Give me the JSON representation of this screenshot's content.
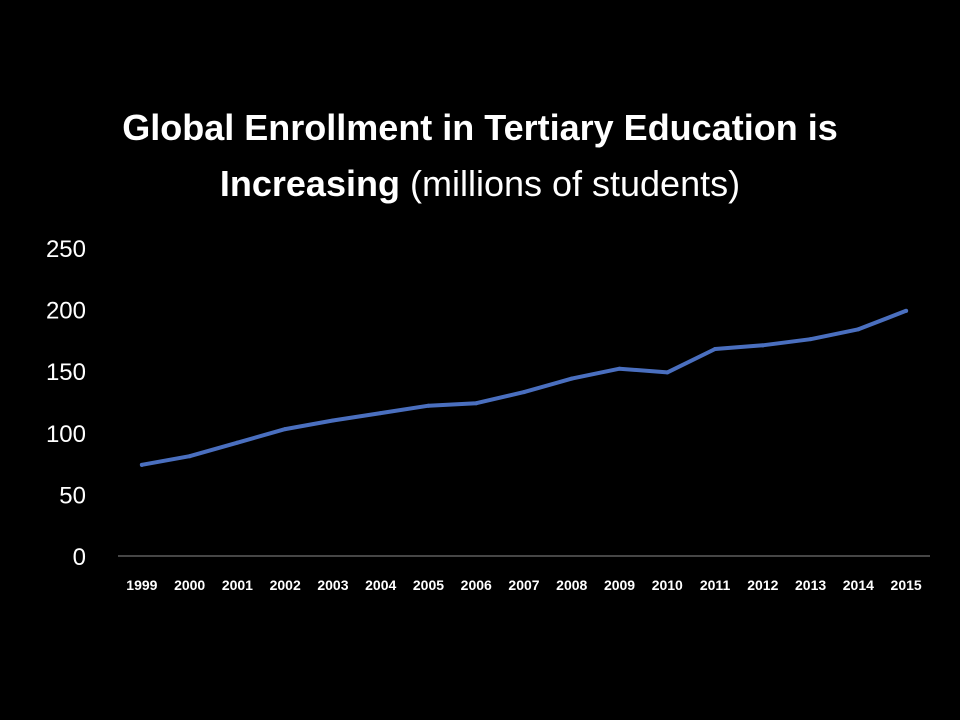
{
  "slide": {
    "title_line1": "Global Enrollment in Tertiary Education is",
    "title_line2_bold": "Increasing",
    "title_line2_normal": " (millions of students)"
  },
  "colors": {
    "background": "#000000",
    "text": "#ffffff",
    "series_line": "#4A6FBF",
    "axis_line": "#8c8c8c"
  },
  "chart_data": {
    "type": "line",
    "title": "Global Enrollment in Tertiary Education is Increasing (millions of students)",
    "xlabel": "",
    "ylabel": "",
    "categories": [
      "1999",
      "2000",
      "2001",
      "2002",
      "2003",
      "2004",
      "2005",
      "2006",
      "2007",
      "2008",
      "2009",
      "2010",
      "2011",
      "2012",
      "2013",
      "2014",
      "2015"
    ],
    "series": [
      {
        "values": [
          74,
          81,
          92,
          103,
          110,
          116,
          122,
          124,
          133,
          144,
          152,
          149,
          168,
          171,
          176,
          184,
          199
        ]
      }
    ],
    "ylim": [
      0,
      250
    ],
    "yticks": [
      0,
      50,
      100,
      150,
      200,
      250
    ],
    "grid": false,
    "legend": "none"
  }
}
